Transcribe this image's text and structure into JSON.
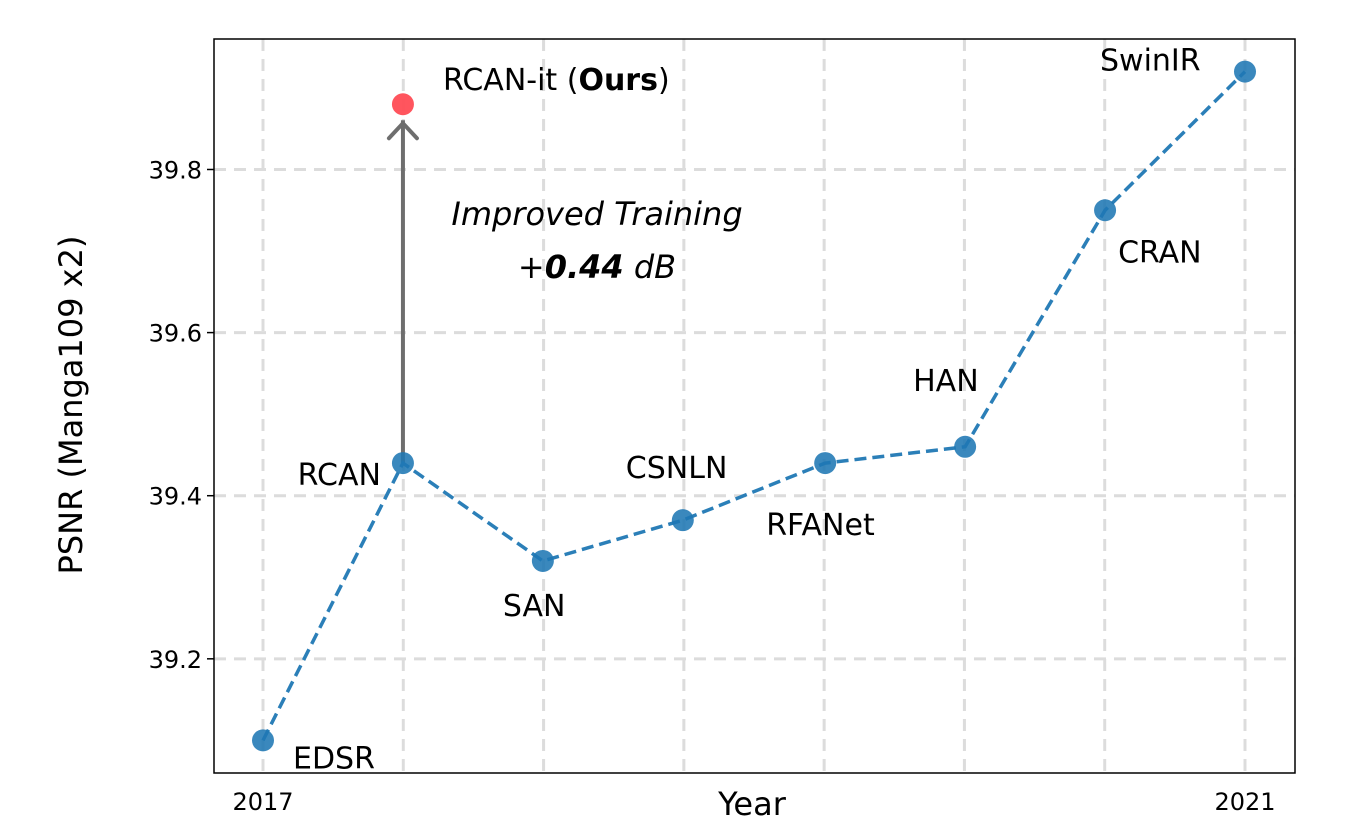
{
  "chart_data": {
    "type": "line",
    "xlabel": "Year",
    "ylabel": "PSNR (Manga109 x2)",
    "x_tick_labels": [
      "2017",
      "",
      "",
      "",
      "",
      "",
      "",
      "2021"
    ],
    "y_ticks": [
      39.2,
      39.4,
      39.6,
      39.8
    ],
    "ylim": [
      39.06,
      39.96
    ],
    "grid": true,
    "series": [
      {
        "color": "#1f77b4",
        "line_style": "dashed",
        "points": [
          {
            "label": "EDSR",
            "x": 2017,
            "y": 39.1
          },
          {
            "label": "RCAN",
            "x": 2017.57,
            "y": 39.44
          },
          {
            "label": "SAN",
            "x": 2018.14,
            "y": 39.32
          },
          {
            "label": "CSNLN",
            "x": 2018.71,
            "y": 39.37
          },
          {
            "label": "RFANet",
            "x": 2019.29,
            "y": 39.44
          },
          {
            "label": "HAN",
            "x": 2019.86,
            "y": 39.46
          },
          {
            "label": "CRAN",
            "x": 2020.43,
            "y": 39.75
          },
          {
            "label": "SwinIR",
            "x": 2021,
            "y": 39.92
          }
        ]
      }
    ],
    "highlight": {
      "label_prefix": "RCAN-it (",
      "label_bold": "Ours",
      "label_suffix": ")",
      "x": 2017.57,
      "y": 39.88,
      "color": "#ff4c55"
    },
    "annotation": {
      "line1": "Improved Training",
      "line2_prefix": "+",
      "line2_bold": "0.44",
      "line2_suffix": " dB",
      "arrow_color": "#6e6e6e"
    }
  }
}
